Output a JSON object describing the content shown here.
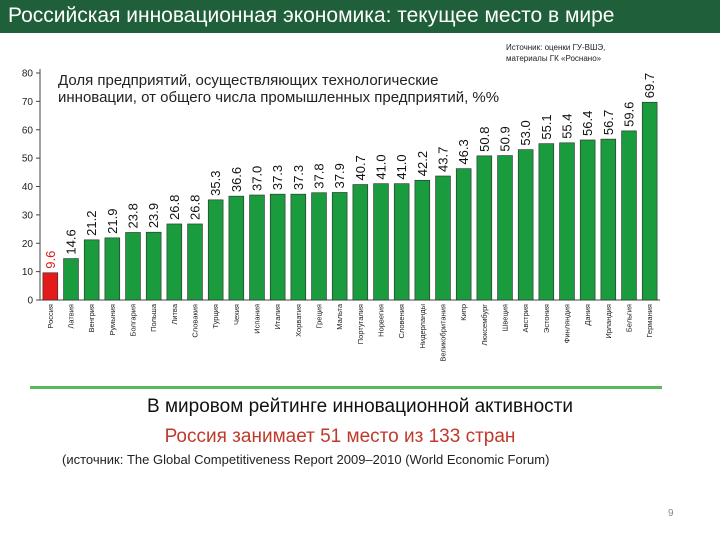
{
  "header": {
    "title": "Российская инновационная экономика: текущее место в мире"
  },
  "source_note": "Источник: оценки ГУ-ВШЭ, материалы ГК «Роснано»",
  "chart_data": {
    "type": "bar",
    "title": "Доля предприятий, осуществляющих технологические инновации, от общего числа промышленных предприятий, %%",
    "categories": [
      "Россия",
      "Латвия",
      "Венгрия",
      "Румыния",
      "Болгария",
      "Польша",
      "Литва",
      "Словакия",
      "Турция",
      "Чехия",
      "Испания",
      "Италия",
      "Хорватия",
      "Греция",
      "Мальта",
      "Португалия",
      "Норвегия",
      "Словения",
      "Нидерланды",
      "Великобритания",
      "Кипр",
      "Люксембург",
      "Швеция",
      "Австрия",
      "Эстония",
      "Финляндия",
      "Дания",
      "Ирландия",
      "Бельгия",
      "Германия"
    ],
    "values": [
      9.6,
      14.6,
      21.2,
      21.9,
      23.8,
      23.9,
      26.8,
      26.8,
      35.3,
      36.6,
      37.0,
      37.3,
      37.3,
      37.8,
      37.9,
      40.7,
      41.0,
      41.0,
      42.2,
      43.7,
      46.3,
      50.8,
      50.9,
      53.0,
      55.1,
      55.4,
      56.4,
      56.7,
      59.6,
      69.7
    ],
    "value_labels": [
      "9.6",
      "14.6",
      "21.2",
      "21.9",
      "23.8",
      "23.9",
      "26.8",
      "26.8",
      "35.3",
      "36.6",
      "37.0",
      "37.3",
      "37.3",
      "37.8",
      "37.9",
      "40.7",
      "41.0",
      "41.0",
      "42.2",
      "43.7",
      "46.3",
      "50.8",
      "50.9",
      "53.0",
      "55.1",
      "55.4",
      "56.4",
      "56.7",
      "59.6",
      "69.7"
    ],
    "yticks": [
      "0",
      "10",
      "20",
      "30",
      "40",
      "50",
      "60",
      "70",
      "80"
    ],
    "ylim": [
      0,
      80
    ],
    "grid": false,
    "colors": {
      "highlight": "#e31b1b",
      "bar": "#1a9c3e",
      "bar_edge": "#2b2b2b",
      "highlight_label": "#d61b1b"
    }
  },
  "summary": {
    "line1": "В мировом рейтинге инновационной активности",
    "line2": "Россия занимает 51 место из 133 стран",
    "source": "(источник: The Global Competitiveness Report 2009–2010 (World Economic Forum)"
  },
  "page_number": "9",
  "colors": {
    "title_bar": "#1f5f3a",
    "divider": "#5cb85c",
    "accent_red": "#c0392b"
  }
}
